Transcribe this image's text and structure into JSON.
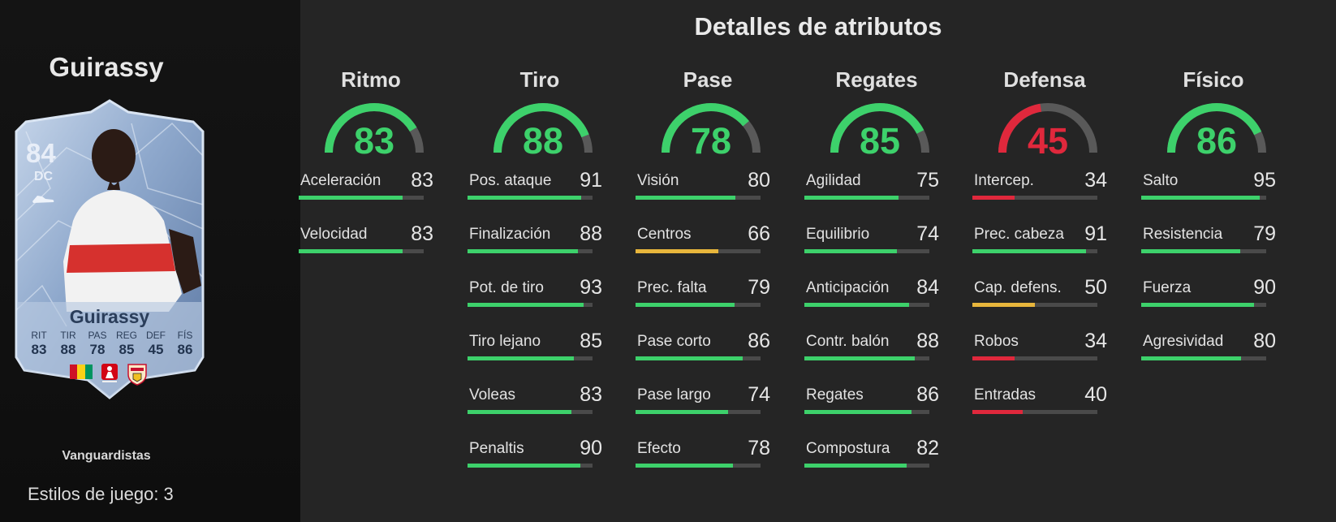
{
  "player": {
    "name": "Guirassy",
    "version": "Vanguardistas",
    "playstyles_label": "Estilos de juego: 3",
    "card": {
      "rating": "84",
      "position": "DC",
      "name": "Guirassy",
      "stats": [
        {
          "label": "RIT",
          "value": "83"
        },
        {
          "label": "TIR",
          "value": "88"
        },
        {
          "label": "PAS",
          "value": "78"
        },
        {
          "label": "REG",
          "value": "85"
        },
        {
          "label": "DEF",
          "value": "45"
        },
        {
          "label": "FÍS",
          "value": "86"
        }
      ],
      "badges": [
        "flag-guinea-icon",
        "bundesliga-logo-icon",
        "vfb-stuttgart-crest-icon"
      ]
    }
  },
  "section_title": "Detalles de atributos",
  "colors": {
    "high": "#3dd16b",
    "mid": "#e8b63c",
    "low": "#e0283c",
    "track": "#4a4a4a",
    "gauge_track": "#595959"
  },
  "categories": [
    {
      "name": "Ritmo",
      "value": 83,
      "attributes": [
        {
          "name": "Aceleración",
          "value": 83
        },
        {
          "name": "Velocidad",
          "value": 83
        }
      ]
    },
    {
      "name": "Tiro",
      "value": 88,
      "attributes": [
        {
          "name": "Pos. ataque",
          "value": 91
        },
        {
          "name": "Finalización",
          "value": 88
        },
        {
          "name": "Pot. de tiro",
          "value": 93
        },
        {
          "name": "Tiro lejano",
          "value": 85
        },
        {
          "name": "Voleas",
          "value": 83
        },
        {
          "name": "Penaltis",
          "value": 90
        }
      ]
    },
    {
      "name": "Pase",
      "value": 78,
      "attributes": [
        {
          "name": "Visión",
          "value": 80
        },
        {
          "name": "Centros",
          "value": 66
        },
        {
          "name": "Prec. falta",
          "value": 79
        },
        {
          "name": "Pase corto",
          "value": 86
        },
        {
          "name": "Pase largo",
          "value": 74
        },
        {
          "name": "Efecto",
          "value": 78
        }
      ]
    },
    {
      "name": "Regates",
      "value": 85,
      "attributes": [
        {
          "name": "Agilidad",
          "value": 75
        },
        {
          "name": "Equilibrio",
          "value": 74
        },
        {
          "name": "Anticipación",
          "value": 84
        },
        {
          "name": "Contr. balón",
          "value": 88
        },
        {
          "name": "Regates",
          "value": 86
        },
        {
          "name": "Compostura",
          "value": 82
        }
      ]
    },
    {
      "name": "Defensa",
      "value": 45,
      "attributes": [
        {
          "name": "Intercep.",
          "value": 34
        },
        {
          "name": "Prec. cabeza",
          "value": 91
        },
        {
          "name": "Cap. defens.",
          "value": 50
        },
        {
          "name": "Robos",
          "value": 34
        },
        {
          "name": "Entradas",
          "value": 40
        }
      ]
    },
    {
      "name": "Físico",
      "value": 86,
      "attributes": [
        {
          "name": "Salto",
          "value": 95
        },
        {
          "name": "Resistencia",
          "value": 79
        },
        {
          "name": "Fuerza",
          "value": 90
        },
        {
          "name": "Agresividad",
          "value": 80
        }
      ]
    }
  ]
}
